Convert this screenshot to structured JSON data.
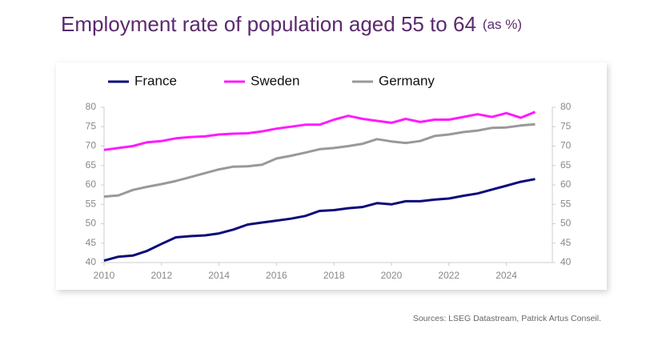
{
  "chart_data": {
    "type": "line",
    "title": "Employment rate of population aged 55 to 64",
    "subtitle": "(as %)",
    "source": "Sources: LSEG Datastream, Patrick Artus Conseil.",
    "x": [
      2010,
      2010.5,
      2011,
      2011.5,
      2012,
      2012.5,
      2013,
      2013.5,
      2014,
      2014.5,
      2015,
      2015.5,
      2016,
      2016.5,
      2017,
      2017.5,
      2018,
      2018.5,
      2019,
      2019.5,
      2020,
      2020.5,
      2021,
      2021.5,
      2022,
      2022.5,
      2023,
      2023.5,
      2024,
      2024.5,
      2025
    ],
    "series": [
      {
        "name": "France",
        "color": "#0a0a7a",
        "values": [
          40.5,
          41.5,
          41.8,
          43,
          44.8,
          46.5,
          46.8,
          47,
          47.5,
          48.5,
          49.8,
          50.3,
          50.8,
          51.3,
          52,
          53.3,
          53.5,
          54,
          54.3,
          55.3,
          55,
          55.8,
          55.8,
          56.2,
          56.5,
          57.2,
          57.8,
          58.8,
          59.8,
          60.8,
          61.5
        ]
      },
      {
        "name": "Sweden",
        "color": "#ff1aff",
        "values": [
          69,
          69.5,
          70,
          71,
          71.3,
          72,
          72.3,
          72.5,
          73,
          73.2,
          73.3,
          73.8,
          74.5,
          75,
          75.5,
          75.5,
          76.8,
          77.8,
          77,
          76.5,
          76,
          77,
          76.2,
          76.8,
          76.8,
          77.5,
          78.2,
          77.5,
          78.5,
          77.3,
          78.8
        ]
      },
      {
        "name": "Germany",
        "color": "#999999",
        "values": [
          57,
          57.3,
          58.7,
          59.5,
          60.2,
          61,
          62,
          63,
          64,
          64.7,
          64.8,
          65.2,
          66.8,
          67.5,
          68.3,
          69.2,
          69.5,
          70,
          70.6,
          71.8,
          71.2,
          70.8,
          71.3,
          72.6,
          73,
          73.6,
          74,
          74.7,
          74.8,
          75.3,
          75.6
        ]
      }
    ],
    "xlim": [
      2010,
      2025.6
    ],
    "xticks": [
      2010,
      2012,
      2014,
      2016,
      2018,
      2020,
      2022,
      2024
    ],
    "ylim": [
      40,
      80
    ],
    "yticks": [
      40,
      45,
      50,
      55,
      60,
      65,
      70,
      75,
      80
    ],
    "y2lim": [
      40,
      80
    ],
    "y2ticks": [
      40,
      45,
      50,
      55,
      60,
      65,
      70,
      75,
      80
    ],
    "legend": "top"
  }
}
